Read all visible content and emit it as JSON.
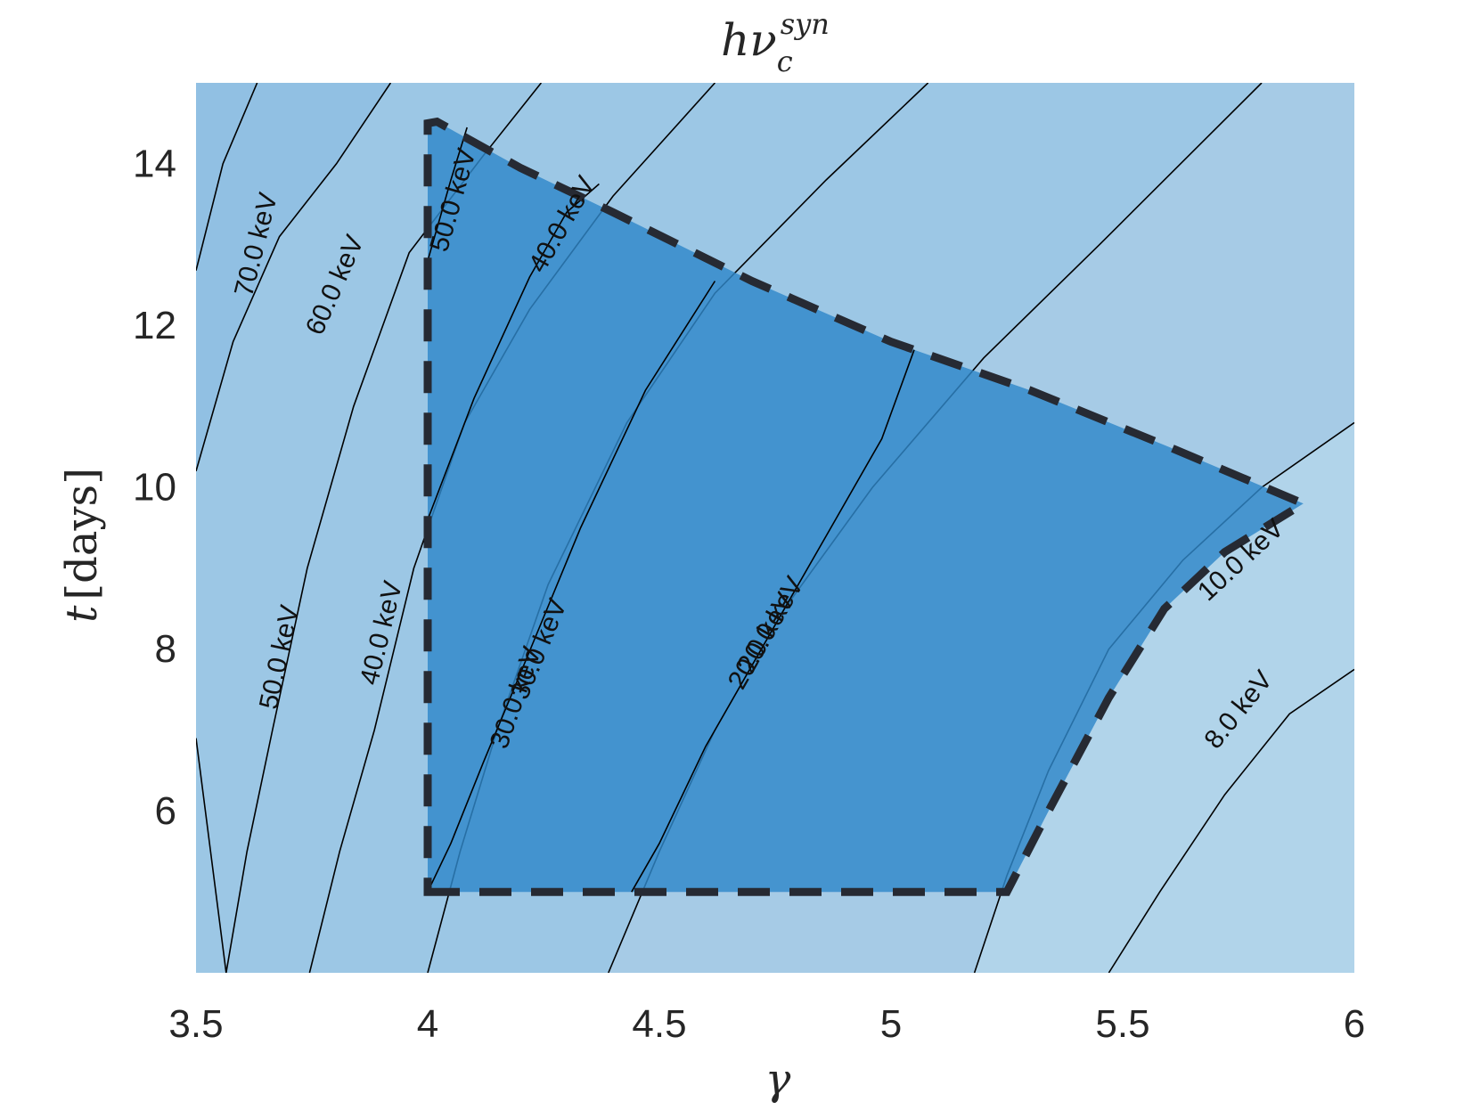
{
  "chart_data": {
    "type": "contour",
    "title": {
      "base": "hν",
      "subscript": "c",
      "superscript": "syn"
    },
    "xlabel": "γ",
    "ylabel": {
      "var": "t",
      "unit": "[days]"
    },
    "xlim": [
      3.5,
      6.0
    ],
    "ylim": [
      4.0,
      15.0
    ],
    "xticks": [
      3.5,
      4.0,
      4.5,
      5.0,
      5.5,
      6.0
    ],
    "xtick_labels": [
      "3.5",
      "4",
      "4.5",
      "5",
      "5.5",
      "6"
    ],
    "yticks": [
      6,
      8,
      10,
      12,
      14
    ],
    "ytick_labels": [
      "6",
      "8",
      "10",
      "12",
      "14"
    ],
    "colors": {
      "background_bands": [
        "#85b9e0",
        "#91c0e3",
        "#9cc7e5",
        "#a6cbe6",
        "#b1d4ea"
      ],
      "region_fill": "#2f88c9",
      "region_fill_opacity": 0.82,
      "contour_line": "#000000",
      "boundary_dash": "#262a33"
    },
    "background_contours": [
      {
        "label": "70.0 keV",
        "points": [
          [
            3.5,
            12.68
          ],
          [
            3.558,
            14.0
          ],
          [
            3.632,
            15.0
          ]
        ],
        "label_at": [
          3.63,
          13.0
        ]
      },
      {
        "label": "60.0 keV",
        "points": [
          [
            3.5,
            10.2
          ],
          [
            3.58,
            11.8
          ],
          [
            3.68,
            13.1
          ],
          [
            3.803,
            14.0
          ],
          [
            3.92,
            15.0
          ]
        ],
        "label_at": [
          3.8,
          12.5
        ]
      },
      {
        "label": "50.0 keV",
        "points": [
          [
            3.5,
            6.9
          ],
          [
            3.565,
            4.0
          ],
          [
            3.61,
            5.5
          ],
          [
            3.665,
            7.0
          ],
          [
            3.74,
            9.0
          ],
          [
            3.84,
            11.0
          ],
          [
            3.96,
            12.9
          ],
          [
            4.12,
            14.1
          ],
          [
            4.245,
            15.0
          ]
        ],
        "label_at": [
          3.68,
          7.9
        ]
      },
      {
        "label": "40.0 keV",
        "points": [
          [
            3.745,
            4.0
          ],
          [
            3.81,
            5.5
          ],
          [
            3.885,
            7.0
          ],
          [
            3.97,
            9.0
          ],
          [
            4.08,
            10.8
          ],
          [
            4.22,
            12.2
          ],
          [
            4.4,
            13.6
          ],
          [
            4.62,
            15.0
          ]
        ],
        "label_at": [
          3.9,
          8.2
        ]
      },
      {
        "label": "30.0 keV",
        "points": [
          [
            4.0,
            4.0
          ],
          [
            4.07,
            5.5
          ],
          [
            4.15,
            7.0
          ],
          [
            4.26,
            8.8
          ],
          [
            4.43,
            10.8
          ],
          [
            4.62,
            12.4
          ],
          [
            4.86,
            13.8
          ],
          [
            5.08,
            15.0
          ]
        ],
        "label_at": [
          4.19,
          7.4
        ]
      },
      {
        "label": "20.0 keV",
        "points": [
          [
            4.39,
            4.0
          ],
          [
            4.5,
            5.5
          ],
          [
            4.62,
            7.0
          ],
          [
            4.77,
            8.5
          ],
          [
            4.96,
            10.0
          ],
          [
            5.2,
            11.6
          ],
          [
            5.45,
            13.0
          ],
          [
            5.8,
            15.0
          ]
        ],
        "label_at": [
          4.72,
          8.1
        ]
      },
      {
        "label": "10.0 keV",
        "points": [
          [
            5.18,
            4.0
          ],
          [
            5.25,
            5.2
          ],
          [
            5.34,
            6.5
          ],
          [
            5.47,
            8.0
          ],
          [
            5.63,
            9.1
          ],
          [
            5.8,
            10.0
          ],
          [
            6.0,
            10.8
          ]
        ],
        "label_at": [
          5.755,
          9.1
        ]
      },
      {
        "label": "8.0 keV",
        "points": [
          [
            5.47,
            4.0
          ],
          [
            5.58,
            5.0
          ],
          [
            5.72,
            6.2
          ],
          [
            5.86,
            7.2
          ],
          [
            6.0,
            7.75
          ]
        ],
        "label_at": [
          5.75,
          7.25
        ]
      }
    ],
    "region": {
      "boundary": [
        [
          4.0,
          5.0
        ],
        [
          5.25,
          5.0
        ],
        [
          5.34,
          6.0
        ],
        [
          5.47,
          7.4
        ],
        [
          5.59,
          8.5
        ],
        [
          5.72,
          9.2
        ],
        [
          5.89,
          9.8
        ],
        [
          5.6,
          10.5
        ],
        [
          5.3,
          11.2
        ],
        [
          5.0,
          11.8
        ],
        [
          4.7,
          12.55
        ],
        [
          4.4,
          13.4
        ],
        [
          4.2,
          13.95
        ],
        [
          4.02,
          14.52
        ],
        [
          4.0,
          14.5
        ]
      ],
      "dashed_edges": [
        "bottom",
        "left",
        "top",
        "right"
      ]
    },
    "region_contours": [
      {
        "label": "50.0 keV",
        "points": [
          [
            4.0,
            12.8
          ],
          [
            4.05,
            13.8
          ],
          [
            4.085,
            14.45
          ]
        ],
        "label_at": [
          4.055,
          13.55
        ]
      },
      {
        "label": "40.0 keV",
        "points": [
          [
            4.0,
            9.6
          ],
          [
            4.1,
            11.1
          ],
          [
            4.22,
            12.6
          ],
          [
            4.3,
            13.4
          ],
          [
            4.37,
            13.75
          ]
        ],
        "label_at": [
          4.29,
          13.25
        ]
      },
      {
        "label": "30.0 keV",
        "points": [
          [
            4.0,
            5.0
          ],
          [
            4.05,
            5.6
          ],
          [
            4.12,
            6.6
          ],
          [
            4.2,
            7.7
          ],
          [
            4.33,
            9.5
          ],
          [
            4.47,
            11.2
          ],
          [
            4.62,
            12.55
          ]
        ],
        "label_at": [
          4.24,
          8.0
        ]
      },
      {
        "label": "20.0 keV",
        "points": [
          [
            4.44,
            5.0
          ],
          [
            4.5,
            5.6
          ],
          [
            4.6,
            6.8
          ],
          [
            4.72,
            8.0
          ],
          [
            4.86,
            9.4
          ],
          [
            4.98,
            10.6
          ],
          [
            5.05,
            11.7
          ]
        ],
        "label_at": [
          4.74,
          8.3
        ]
      }
    ]
  }
}
